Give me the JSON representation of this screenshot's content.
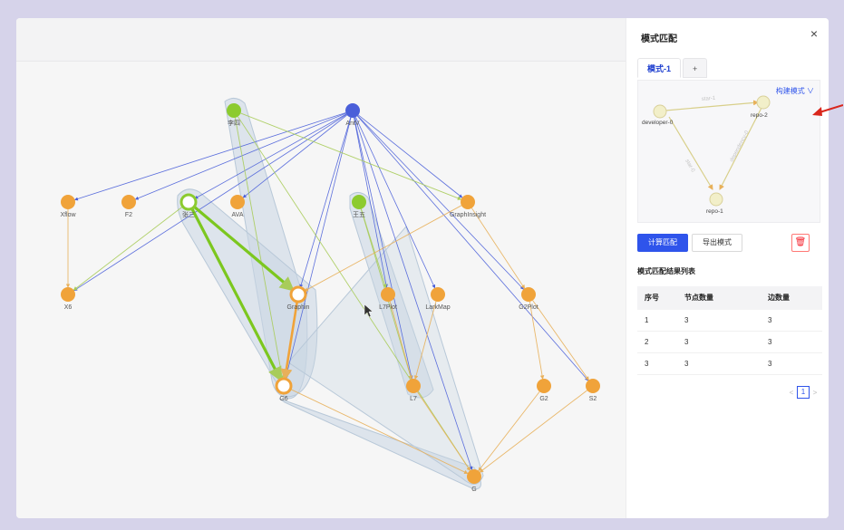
{
  "graph": {
    "nodes": [
      {
        "id": "lisi",
        "label": "李四",
        "type": "green"
      },
      {
        "id": "antv",
        "label": "AntV",
        "type": "blue"
      },
      {
        "id": "xflow",
        "label": "Xflow",
        "type": "orange"
      },
      {
        "id": "f2",
        "label": "F2",
        "type": "orange"
      },
      {
        "id": "zhangsan",
        "label": "张三",
        "type": "green-ring"
      },
      {
        "id": "ava",
        "label": "AVA",
        "type": "orange"
      },
      {
        "id": "wangwu",
        "label": "王五",
        "type": "green"
      },
      {
        "id": "graphinsight",
        "label": "GraphInsight",
        "type": "orange"
      },
      {
        "id": "x6",
        "label": "X6",
        "type": "orange"
      },
      {
        "id": "graphin",
        "label": "Graphin",
        "type": "orange-ring"
      },
      {
        "id": "l7plot",
        "label": "L7Plot",
        "type": "orange"
      },
      {
        "id": "larkmap",
        "label": "LarkMap",
        "type": "orange"
      },
      {
        "id": "g2plot",
        "label": "G2Plot",
        "type": "orange"
      },
      {
        "id": "g6",
        "label": "G6",
        "type": "orange-ring"
      },
      {
        "id": "l7",
        "label": "L7",
        "type": "orange"
      },
      {
        "id": "g2",
        "label": "G2",
        "type": "orange"
      },
      {
        "id": "s2",
        "label": "S2",
        "type": "orange"
      },
      {
        "id": "g",
        "label": "G",
        "type": "orange"
      }
    ]
  },
  "panel": {
    "title": "模式匹配",
    "tabs": [
      {
        "label": "模式-1"
      },
      {
        "label": "+"
      }
    ],
    "build_mode": "构建模式 ∨",
    "pattern": {
      "nodes": [
        {
          "label": "developer-0"
        },
        {
          "label": "repo-2"
        },
        {
          "label": "repo-1"
        }
      ],
      "edges": [
        {
          "label": "star-1"
        },
        {
          "label": "star-0"
        },
        {
          "label": "dependency-0"
        }
      ]
    },
    "buttons": {
      "compute": "计算匹配",
      "export": "导出模式",
      "delete_icon": "🗑"
    },
    "list_title": "模式匹配结果列表",
    "table": {
      "headers": [
        "序号",
        "节点数量",
        "边数量"
      ],
      "rows": [
        [
          "1",
          "3",
          "3"
        ],
        [
          "2",
          "3",
          "3"
        ],
        [
          "3",
          "3",
          "3"
        ]
      ]
    },
    "pagination": {
      "prev": "<",
      "current": "1",
      "next": ">"
    }
  },
  "colors": {
    "orange": "#f0a33a",
    "green": "#8ccb2f",
    "blue": "#4a5fd9",
    "highlight": "#c9d6e3",
    "accent": "#2f54eb",
    "arrow": "#d9261c"
  }
}
